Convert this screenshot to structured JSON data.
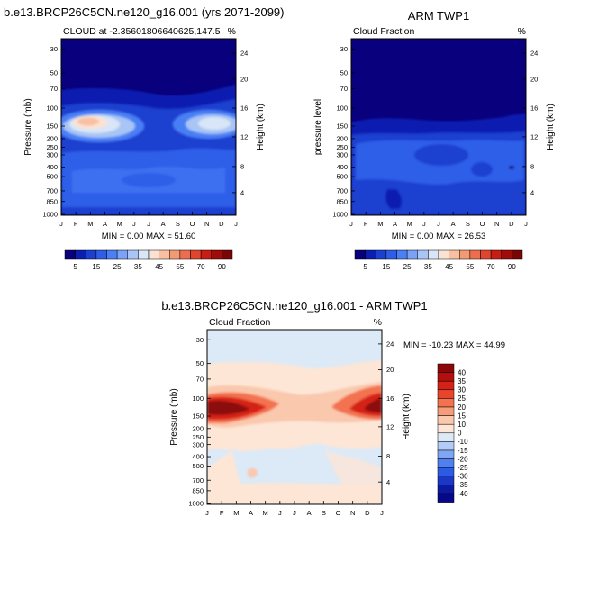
{
  "months": [
    "J",
    "F",
    "M",
    "A",
    "M",
    "J",
    "J",
    "A",
    "S",
    "O",
    "N",
    "D",
    "J"
  ],
  "pressure_ticks": [
    "30",
    "50",
    "70",
    "100",
    "150",
    "200",
    "250",
    "300",
    "400",
    "500",
    "700",
    "850",
    "1000"
  ],
  "height_ticks": [
    "24",
    "20",
    "16",
    "12",
    "8",
    "4"
  ],
  "panels": {
    "model": {
      "main_title": "b.e13.BRCP26C5CN.ne120_g16.001 (yrs 2071-2099)",
      "left_label": "CLOUD at -2.35601806640625,147.5",
      "right_label": "%",
      "ylabel": "Pressure (mb)",
      "y2label": "Height (km)",
      "minmax": "MIN =   0.00 MAX =  51.60"
    },
    "obs": {
      "main_title": "ARM TWP1",
      "left_label": "Cloud Fraction",
      "right_label": "%",
      "ylabel": "pressure level",
      "y2label": "Height (km)",
      "minmax": "MIN =   0.00 MAX =  26.53"
    },
    "diff": {
      "main_title": "b.e13.BRCP26C5CN.ne120_g16.001 - ARM TWP1",
      "left_label": "Cloud Fraction",
      "right_label": "%",
      "ylabel": "Pressure (mb)",
      "y2label": "Height (km)",
      "minmax": "MIN = -10.23 MAX =  44.99"
    }
  },
  "abs_colorbar": {
    "labels": [
      "5",
      "15",
      "25",
      "35",
      "45",
      "55",
      "70",
      "90"
    ],
    "colors": [
      "#08007d",
      "#0a1fb0",
      "#1c3fd0",
      "#2e5ee8",
      "#4a7ff5",
      "#7aa3f7",
      "#a9c5f5",
      "#d8e6f7",
      "#fbe2d2",
      "#f8c0a0",
      "#f39a74",
      "#ec6e4e",
      "#e0452e",
      "#c71d15",
      "#a00b0b",
      "#7a0505"
    ]
  },
  "diff_colorbar": {
    "labels": [
      "40",
      "35",
      "30",
      "25",
      "20",
      "15",
      "10",
      "0",
      "-10",
      "-15",
      "-20",
      "-25",
      "-30",
      "-35",
      "-40"
    ],
    "colors": [
      "#8c0808",
      "#b50f0d",
      "#d52218",
      "#e9452d",
      "#f3724f",
      "#f79c7b",
      "#fac8ad",
      "#fde6d6",
      "#dce9f7",
      "#b3ccf5",
      "#7fa6f2",
      "#4f7ff0",
      "#2d5ce4",
      "#1a38c4",
      "#0b1aa0",
      "#07078a"
    ]
  },
  "chart_data": [
    {
      "type": "heatmap",
      "name": "CLOUD at -2.35601806640625,147.5",
      "x": [
        "J",
        "F",
        "M",
        "A",
        "M",
        "J",
        "J",
        "A",
        "S",
        "O",
        "N",
        "D",
        "J"
      ],
      "y_pressure_mb": [
        30,
        50,
        70,
        100,
        150,
        200,
        250,
        300,
        400,
        500,
        700,
        850,
        1000
      ],
      "units": "%",
      "min": 0.0,
      "max": 51.6,
      "z": [
        [
          0,
          0,
          0,
          0,
          0,
          0,
          0,
          0,
          0,
          0,
          0,
          0,
          0
        ],
        [
          0,
          0,
          0,
          0,
          0,
          0,
          0,
          0,
          0,
          0,
          0,
          0,
          0
        ],
        [
          2,
          2,
          2,
          2,
          1,
          1,
          1,
          1,
          1,
          1,
          2,
          3,
          3
        ],
        [
          15,
          22,
          25,
          20,
          12,
          8,
          7,
          8,
          10,
          14,
          20,
          22,
          18
        ],
        [
          40,
          48,
          48,
          38,
          22,
          14,
          12,
          16,
          25,
          38,
          45,
          44,
          40
        ],
        [
          30,
          38,
          38,
          32,
          20,
          14,
          12,
          15,
          22,
          32,
          38,
          36,
          32
        ],
        [
          20,
          22,
          22,
          20,
          17,
          15,
          14,
          15,
          17,
          20,
          22,
          22,
          20
        ],
        [
          16,
          16,
          16,
          16,
          14,
          13,
          12,
          13,
          14,
          16,
          16,
          16,
          16
        ],
        [
          13,
          14,
          13,
          13,
          12,
          11,
          11,
          12,
          12,
          13,
          13,
          13,
          13
        ],
        [
          12,
          12,
          12,
          12,
          11,
          10,
          10,
          11,
          11,
          12,
          12,
          12,
          12
        ],
        [
          14,
          14,
          14,
          13,
          12,
          11,
          11,
          12,
          12,
          13,
          14,
          14,
          14
        ],
        [
          15,
          15,
          14,
          14,
          13,
          12,
          12,
          13,
          13,
          14,
          15,
          15,
          15
        ],
        [
          8,
          8,
          8,
          8,
          7,
          7,
          7,
          7,
          7,
          8,
          8,
          8,
          8
        ]
      ]
    },
    {
      "type": "heatmap",
      "name": "ARM TWP1",
      "x": [
        "J",
        "F",
        "M",
        "A",
        "M",
        "J",
        "J",
        "A",
        "S",
        "O",
        "N",
        "D",
        "J"
      ],
      "y_pressure_mb": [
        30,
        50,
        70,
        100,
        150,
        200,
        250,
        300,
        400,
        500,
        700,
        850,
        1000
      ],
      "units": "%",
      "min": 0.0,
      "max": 26.53,
      "z": [
        [
          0,
          0,
          0,
          0,
          0,
          0,
          0,
          0,
          0,
          0,
          0,
          0,
          0
        ],
        [
          0,
          0,
          0,
          0,
          0,
          0,
          0,
          0,
          0,
          0,
          0,
          0,
          0
        ],
        [
          0,
          0,
          0,
          0,
          0,
          0,
          0,
          0,
          0,
          0,
          0,
          0,
          0
        ],
        [
          1,
          1,
          1,
          1,
          1,
          1,
          1,
          1,
          1,
          1,
          1,
          1,
          1
        ],
        [
          8,
          8,
          7,
          6,
          6,
          6,
          6,
          6,
          7,
          7,
          8,
          9,
          8
        ],
        [
          15,
          15,
          15,
          14,
          13,
          13,
          14,
          15,
          15,
          15,
          15,
          15,
          15
        ],
        [
          14,
          13,
          12,
          12,
          11,
          11,
          12,
          13,
          13,
          14,
          14,
          15,
          14
        ],
        [
          12,
          11,
          10,
          10,
          9,
          9,
          10,
          11,
          11,
          12,
          12,
          12,
          12
        ],
        [
          10,
          9,
          8,
          8,
          7,
          7,
          8,
          9,
          9,
          10,
          10,
          10,
          10
        ],
        [
          9,
          8,
          7,
          7,
          6,
          6,
          7,
          8,
          8,
          9,
          9,
          9,
          9
        ],
        [
          9,
          8,
          7,
          6,
          5,
          5,
          6,
          7,
          8,
          9,
          9,
          9,
          9
        ],
        [
          10,
          9,
          8,
          8,
          7,
          7,
          7,
          8,
          9,
          10,
          10,
          10,
          10
        ],
        [
          4,
          4,
          4,
          4,
          3,
          3,
          3,
          4,
          4,
          4,
          4,
          4,
          4
        ]
      ]
    },
    {
      "type": "heatmap",
      "name": "b.e13.BRCP26C5CN.ne120_g16.001 - ARM TWP1",
      "x": [
        "J",
        "F",
        "M",
        "A",
        "M",
        "J",
        "J",
        "A",
        "S",
        "O",
        "N",
        "D",
        "J"
      ],
      "y_pressure_mb": [
        30,
        50,
        70,
        100,
        150,
        200,
        250,
        300,
        400,
        500,
        700,
        850,
        1000
      ],
      "units": "%",
      "min": -10.23,
      "max": 44.99,
      "z": [
        [
          0,
          0,
          0,
          0,
          0,
          0,
          0,
          0,
          0,
          0,
          0,
          0,
          0
        ],
        [
          1,
          1,
          1,
          1,
          1,
          1,
          1,
          1,
          1,
          1,
          1,
          1,
          1
        ],
        [
          5,
          5,
          5,
          5,
          4,
          4,
          4,
          4,
          4,
          5,
          5,
          5,
          5
        ],
        [
          25,
          34,
          38,
          32,
          18,
          12,
          10,
          12,
          15,
          22,
          32,
          38,
          30
        ],
        [
          38,
          44,
          44,
          36,
          18,
          10,
          8,
          10,
          20,
          34,
          42,
          40,
          38
        ],
        [
          10,
          14,
          14,
          10,
          6,
          2,
          0,
          2,
          4,
          8,
          12,
          12,
          10
        ],
        [
          5,
          7,
          7,
          5,
          3,
          -2,
          -3,
          -2,
          2,
          4,
          5,
          5,
          5
        ],
        [
          3,
          3,
          2,
          2,
          1,
          -4,
          -4,
          -3,
          -1,
          2,
          3,
          3,
          3
        ],
        [
          2,
          2,
          3,
          4,
          3,
          -3,
          -5,
          -4,
          -2,
          1,
          2,
          2,
          2
        ],
        [
          1,
          1,
          2,
          3,
          2,
          -2,
          -4,
          -3,
          -2,
          1,
          1,
          1,
          1
        ],
        [
          3,
          3,
          3,
          3,
          3,
          2,
          1,
          1,
          2,
          3,
          3,
          3,
          3
        ],
        [
          3,
          3,
          3,
          3,
          3,
          2,
          2,
          2,
          2,
          3,
          3,
          3,
          3
        ],
        [
          2,
          2,
          2,
          2,
          2,
          2,
          2,
          2,
          2,
          2,
          2,
          2,
          2
        ]
      ]
    }
  ]
}
